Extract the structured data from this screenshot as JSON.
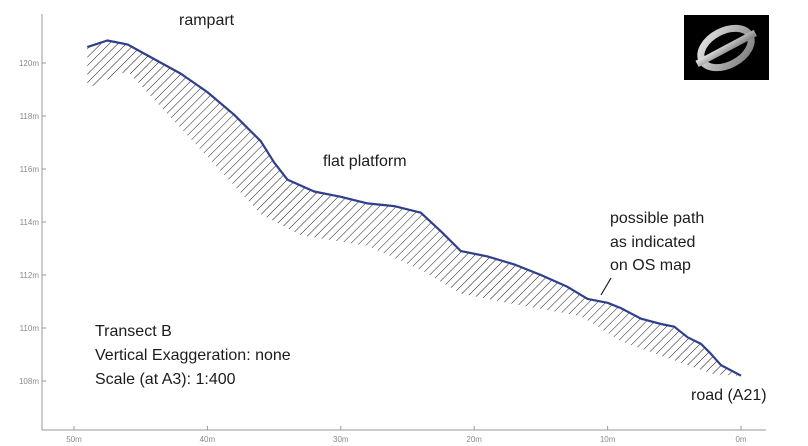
{
  "chart_data": {
    "type": "area",
    "x_unit": "m",
    "y_unit": "m",
    "xlim": [
      50,
      0
    ],
    "ylim": [
      107,
      121.6
    ],
    "x_ticks": [
      "50m",
      "40m",
      "30m",
      "20m",
      "10m",
      "0m"
    ],
    "y_ticks": [
      "108m",
      "110m",
      "112m",
      "114m",
      "116m",
      "118m",
      "120m"
    ],
    "profile": [
      [
        49,
        120.6
      ],
      [
        47.5,
        120.85
      ],
      [
        46,
        120.7
      ],
      [
        44,
        120.15
      ],
      [
        42,
        119.6
      ],
      [
        40,
        118.9
      ],
      [
        38,
        118.05
      ],
      [
        36,
        117.05
      ],
      [
        35,
        116.25
      ],
      [
        34,
        115.6
      ],
      [
        32,
        115.15
      ],
      [
        30,
        114.95
      ],
      [
        28,
        114.7
      ],
      [
        26,
        114.6
      ],
      [
        24,
        114.35
      ],
      [
        22.5,
        113.65
      ],
      [
        21,
        112.9
      ],
      [
        19,
        112.7
      ],
      [
        17,
        112.4
      ],
      [
        15,
        112.0
      ],
      [
        13,
        111.55
      ],
      [
        11.5,
        111.1
      ],
      [
        10,
        110.95
      ],
      [
        9,
        110.75
      ],
      [
        7.5,
        110.35
      ],
      [
        6,
        110.15
      ],
      [
        5,
        110.05
      ],
      [
        4,
        109.65
      ],
      [
        3,
        109.4
      ],
      [
        2.3,
        109.05
      ],
      [
        1.5,
        108.6
      ],
      [
        0,
        108.2
      ]
    ],
    "hatch_lower": [
      [
        49,
        119.05
      ],
      [
        46,
        119.7
      ],
      [
        36,
        114.3
      ],
      [
        33,
        113.5
      ],
      [
        28,
        113.1
      ],
      [
        24,
        112.2
      ],
      [
        21,
        111.3
      ],
      [
        17,
        110.9
      ],
      [
        12,
        110.45
      ],
      [
        9,
        109.5
      ],
      [
        4,
        108.6
      ],
      [
        2,
        108.25
      ]
    ]
  },
  "annotations": {
    "rampart": "rampart",
    "flat_platform": "flat platform",
    "possible_path": [
      "possible path",
      "as indicated",
      "on OS map"
    ],
    "transect_info": [
      "Transect B",
      "Vertical Exaggeration: none",
      "Scale (at A3): 1:400"
    ],
    "road": "road (A21)"
  },
  "logo": {
    "icon": "os-grey-logo-icon",
    "background": "#000000",
    "color": "#b5b5b5"
  },
  "colors": {
    "profile_line": "#2f3f8c",
    "hatch": "#1c1c1c",
    "axis": "#9a9a9a"
  }
}
